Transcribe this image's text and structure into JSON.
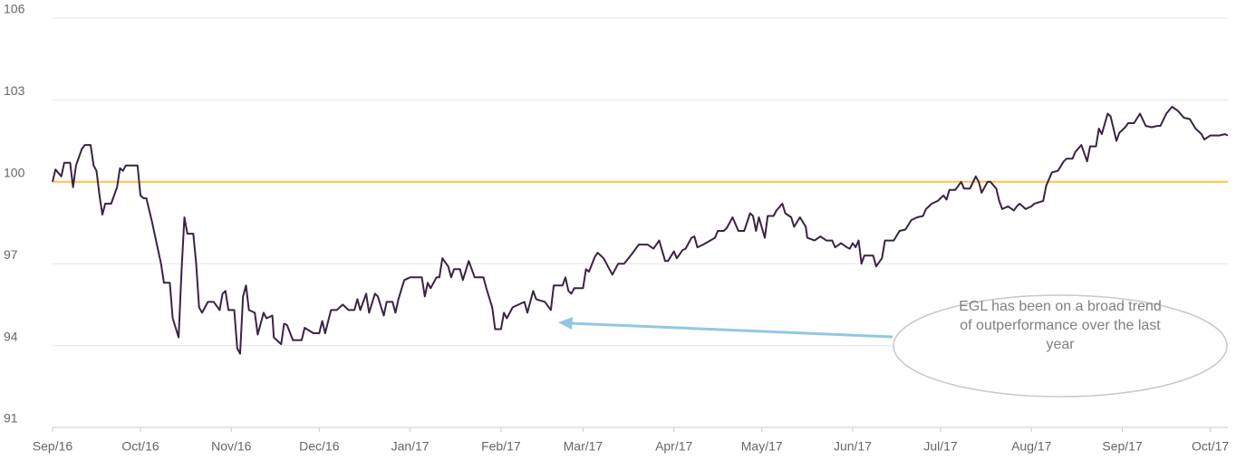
{
  "chart_data": {
    "type": "line",
    "annotation": "EGL has been on a broad trend of outperformance over the last year",
    "x": [
      0,
      1,
      3,
      4,
      6,
      7,
      8,
      10,
      11,
      13,
      14,
      15,
      16,
      17,
      18,
      20,
      22,
      23,
      24,
      25,
      29,
      30,
      31,
      32,
      34,
      35,
      37,
      38,
      40,
      41,
      43,
      44,
      45,
      46,
      48,
      49,
      50,
      51,
      53,
      55,
      57,
      58,
      59,
      60,
      62,
      63,
      64,
      65,
      66,
      67,
      69,
      70,
      72,
      73,
      75,
      75.5,
      78,
      79,
      80,
      82,
      85,
      86,
      89,
      91,
      92,
      93,
      95,
      97,
      99,
      101,
      103,
      104,
      105,
      107,
      108,
      110,
      111,
      113,
      114,
      116,
      117,
      118,
      120,
      122,
      126,
      127,
      128,
      129,
      131,
      132,
      133,
      135,
      136,
      137,
      139,
      140,
      142,
      144,
      147,
      148,
      150,
      151,
      153,
      154,
      155,
      157,
      159,
      161,
      162,
      164,
      165,
      168,
      170,
      171,
      174,
      175,
      176,
      177,
      178,
      181,
      182,
      183,
      185,
      186,
      188,
      190,
      191,
      193,
      195,
      198,
      200,
      203,
      205,
      207,
      209,
      210,
      212,
      213,
      215,
      216,
      218,
      219,
      220,
      222,
      226,
      227,
      229,
      230,
      232,
      234,
      236,
      238,
      239,
      240,
      241,
      243,
      244,
      246,
      247,
      249,
      250,
      252,
      253,
      255,
      257,
      257.5,
      260,
      262,
      264,
      266,
      267,
      269,
      271,
      272,
      273,
      274,
      275,
      276,
      277,
      280,
      281,
      283,
      284,
      287,
      289,
      291,
      293,
      295,
      297,
      298,
      300,
      302,
      304,
      305,
      306,
      308,
      310,
      311,
      313,
      315,
      316,
      317,
      319,
      320,
      322,
      323,
      324,
      326,
      328,
      329,
      330,
      332,
      334,
      335,
      338,
      339,
      341,
      343,
      345,
      346,
      348,
      349,
      351,
      353,
      354,
      356,
      357,
      358,
      360,
      361,
      363,
      364,
      366,
      367,
      369,
      371,
      373,
      375,
      377,
      378,
      380,
      382,
      384,
      386,
      388,
      390,
      392,
      393,
      395,
      398,
      400,
      401
    ],
    "series": [
      {
        "name": "EGL",
        "color": "#3b2343",
        "values": [
          100.0,
          100.45,
          100.2,
          100.7,
          100.7,
          99.8,
          100.6,
          101.2,
          101.35,
          101.35,
          100.6,
          100.4,
          99.5,
          98.8,
          99.2,
          99.2,
          99.8,
          100.5,
          100.4,
          100.6,
          100.6,
          99.5,
          99.4,
          99.4,
          98.5,
          98.0,
          97.0,
          96.3,
          96.3,
          95.0,
          94.3,
          96.7,
          98.7,
          98.1,
          98.1,
          97.0,
          95.4,
          95.2,
          95.6,
          95.6,
          95.3,
          95.9,
          96.0,
          95.3,
          95.3,
          93.9,
          93.7,
          95.8,
          96.2,
          95.3,
          95.2,
          94.4,
          95.2,
          95.0,
          95.1,
          94.3,
          94.05,
          94.8,
          94.75,
          94.2,
          94.2,
          94.65,
          94.45,
          94.45,
          94.9,
          94.45,
          95.3,
          95.3,
          95.5,
          95.3,
          95.3,
          95.7,
          95.3,
          95.9,
          95.2,
          95.9,
          95.8,
          95.1,
          95.6,
          95.6,
          95.2,
          95.7,
          96.4,
          96.5,
          96.5,
          95.8,
          96.3,
          96.1,
          96.5,
          96.5,
          97.2,
          96.9,
          96.5,
          96.8,
          96.8,
          96.4,
          97.1,
          96.5,
          96.5,
          96.1,
          95.4,
          94.6,
          94.6,
          95.2,
          95.0,
          95.4,
          95.5,
          95.6,
          95.2,
          96.0,
          95.7,
          95.6,
          95.3,
          96.2,
          96.2,
          96.5,
          96.0,
          95.9,
          96.1,
          96.1,
          96.8,
          96.7,
          97.25,
          97.4,
          97.2,
          96.8,
          96.6,
          97.0,
          97.0,
          97.4,
          97.7,
          97.7,
          97.55,
          97.85,
          97.1,
          97.1,
          97.45,
          97.2,
          97.5,
          97.55,
          97.95,
          98.0,
          97.6,
          97.7,
          97.95,
          98.2,
          98.2,
          98.3,
          98.7,
          98.2,
          98.2,
          98.85,
          98.75,
          98.2,
          98.7,
          97.95,
          98.75,
          98.75,
          98.95,
          99.2,
          98.85,
          98.7,
          98.35,
          98.7,
          98.35,
          97.95,
          97.85,
          98.0,
          97.85,
          97.85,
          97.6,
          97.75,
          97.6,
          97.55,
          97.75,
          97.6,
          97.85,
          97.0,
          97.3,
          97.3,
          96.9,
          97.2,
          97.85,
          97.85,
          98.2,
          98.25,
          98.6,
          98.7,
          98.75,
          99.0,
          99.2,
          99.3,
          99.5,
          99.35,
          99.7,
          99.7,
          100.0,
          99.75,
          99.75,
          100.2,
          100.0,
          99.6,
          100.0,
          100.0,
          99.75,
          99.3,
          99.0,
          99.1,
          98.95,
          99.1,
          99.2,
          99.0,
          99.1,
          99.2,
          99.3,
          99.85,
          100.35,
          100.4,
          100.75,
          100.85,
          100.85,
          101.1,
          101.35,
          100.75,
          101.3,
          101.3,
          101.95,
          101.75,
          102.5,
          102.4,
          101.5,
          101.8,
          102.0,
          102.15,
          102.15,
          102.5,
          102.05,
          102.0,
          102.05,
          102.05,
          102.5,
          102.75,
          102.6,
          102.35,
          102.3,
          101.95,
          101.75,
          101.55,
          101.7,
          101.7,
          101.75,
          101.7
        ]
      }
    ],
    "reference_line": {
      "value": 100,
      "color": "#f7c548"
    },
    "xlim": [
      0,
      401
    ],
    "xticks": [
      {
        "value": 0,
        "label": "Sep/16"
      },
      {
        "value": 30,
        "label": "Oct/16"
      },
      {
        "value": 61,
        "label": "Nov/16"
      },
      {
        "value": 91,
        "label": "Dec/16"
      },
      {
        "value": 122,
        "label": "Jan/17"
      },
      {
        "value": 153,
        "label": "Feb/17"
      },
      {
        "value": 181,
        "label": "Mar/17"
      },
      {
        "value": 212,
        "label": "Apr/17"
      },
      {
        "value": 242,
        "label": "May/17"
      },
      {
        "value": 273,
        "label": "Jun/17"
      },
      {
        "value": 303,
        "label": "Jul/17"
      },
      {
        "value": 334,
        "label": "Aug/17"
      },
      {
        "value": 365,
        "label": "Sep/17"
      },
      {
        "value": 395,
        "label": "Oct/17"
      }
    ],
    "ylim": [
      91,
      106
    ],
    "yticks": [
      91,
      94,
      97,
      100,
      103,
      106
    ],
    "grid": true
  }
}
